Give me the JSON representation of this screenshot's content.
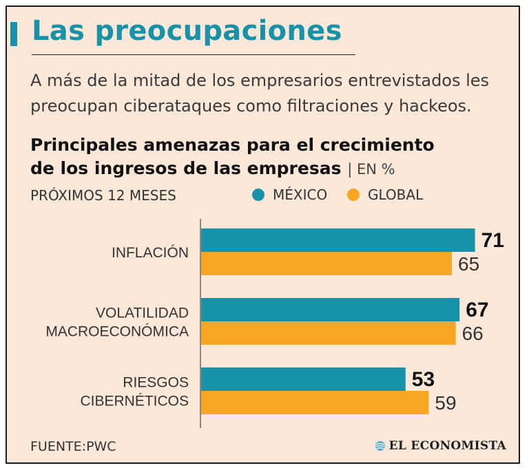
{
  "title": "Las preocupaciones",
  "subtitle": {
    "line1": "A más de la mitad de los empresarios entrevistados les",
    "line2": "preocupan ciberataques como filtraciones y hackeos."
  },
  "chart_heading": {
    "line1": "Principales amenazas para el crecimiento",
    "line2": "de los ingresos de las empresas",
    "unit": "| EN %"
  },
  "period": "PRÓXIMOS 12 MESES",
  "colors": {
    "mexico": "#1792a8",
    "global": "#f6a623",
    "background": "#fbe8d8"
  },
  "chart_data": {
    "type": "bar",
    "orientation": "horizontal",
    "title": "Principales amenazas para el crecimiento de los ingresos de las empresas",
    "unit": "%",
    "categories": [
      [
        "INFLACIÓN"
      ],
      [
        "VOLATILIDAD",
        "MACROECONÓMICA"
      ],
      [
        "RIESGOS",
        "CIBERNÉTICOS"
      ]
    ],
    "series": [
      {
        "name": "MÉXICO",
        "values": [
          71,
          67,
          53
        ]
      },
      {
        "name": "GLOBAL",
        "values": [
          65,
          66,
          59
        ]
      }
    ],
    "xlim": [
      0,
      100
    ],
    "grid": false,
    "legend": "top"
  },
  "footer": {
    "source": "FUENTE:PWC",
    "brand": "EL ECONOMISTA"
  }
}
